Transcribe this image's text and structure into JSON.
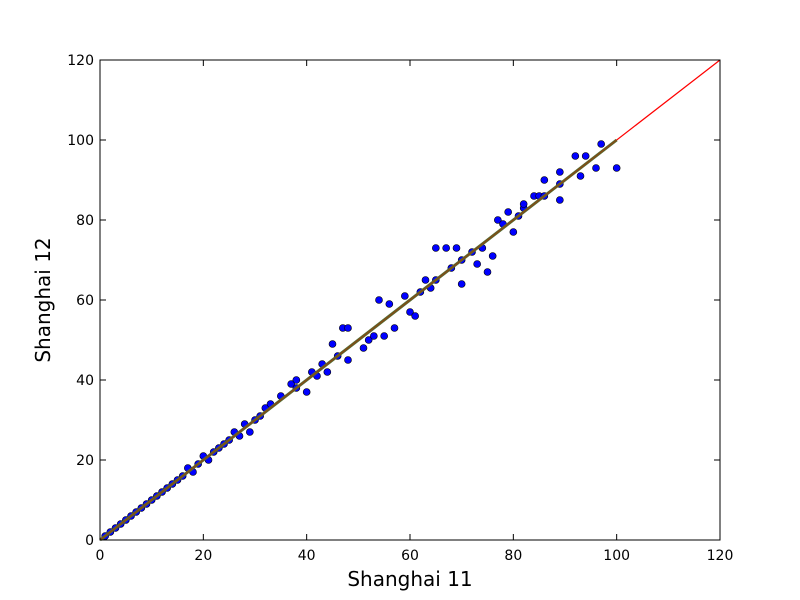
{
  "chart_data": {
    "type": "scatter",
    "title": "",
    "xlabel": "Shanghai 11",
    "ylabel": "Shanghai 12",
    "xlim": [
      0,
      120
    ],
    "ylim": [
      0,
      120
    ],
    "xticks": [
      0,
      20,
      40,
      60,
      80,
      100,
      120
    ],
    "yticks": [
      0,
      20,
      40,
      60,
      80,
      100,
      120
    ],
    "grid": false,
    "legend": "none",
    "colors": {
      "points": "#0000ff",
      "point_edge": "#000000",
      "identity_line": "#ff0000",
      "fit_line": "#556b2f",
      "fit_line_overlay": "#8b4513"
    },
    "series": [
      {
        "kind": "points",
        "x": [
          1,
          2,
          3,
          4,
          5,
          6,
          7,
          8,
          9,
          10,
          11,
          12,
          13,
          14,
          15,
          16,
          17,
          18,
          19,
          20,
          21,
          22,
          23,
          24,
          25,
          26,
          27,
          28,
          29,
          30,
          31,
          32,
          33,
          35,
          37,
          38,
          38,
          40,
          41,
          42,
          43,
          44,
          45,
          46,
          47,
          48,
          48,
          51,
          52,
          53,
          54,
          55,
          56,
          57,
          59,
          60,
          61,
          62,
          63,
          64,
          65,
          65,
          67,
          68,
          69,
          70,
          70,
          72,
          73,
          74,
          75,
          76,
          77,
          78,
          79,
          80,
          81,
          82,
          82,
          84,
          85,
          86,
          86,
          89,
          89,
          89,
          92,
          93,
          94,
          96,
          97,
          100
        ],
        "y": [
          1,
          2,
          3,
          4,
          5,
          6,
          7,
          8,
          9,
          10,
          11,
          12,
          13,
          14,
          15,
          16,
          18,
          17,
          19,
          21,
          20,
          22,
          23,
          24,
          25,
          27,
          26,
          29,
          27,
          30,
          31,
          33,
          34,
          36,
          39,
          38,
          40,
          37,
          42,
          41,
          44,
          42,
          49,
          46,
          53,
          53,
          45,
          48,
          50,
          51,
          60,
          51,
          59,
          53,
          61,
          57,
          56,
          62,
          65,
          63,
          65,
          73,
          73,
          68,
          73,
          64,
          70,
          72,
          69,
          73,
          67,
          71,
          80,
          79,
          82,
          77,
          81,
          83,
          84,
          86,
          86,
          86,
          90,
          92,
          85,
          89,
          96,
          91,
          96,
          93,
          99,
          93
        ]
      },
      {
        "kind": "line",
        "name": "",
        "x": [
          0,
          120
        ],
        "y": [
          0,
          120
        ]
      },
      {
        "kind": "line",
        "name": "",
        "x": [
          0,
          100
        ],
        "y": [
          0,
          100
        ]
      }
    ]
  }
}
